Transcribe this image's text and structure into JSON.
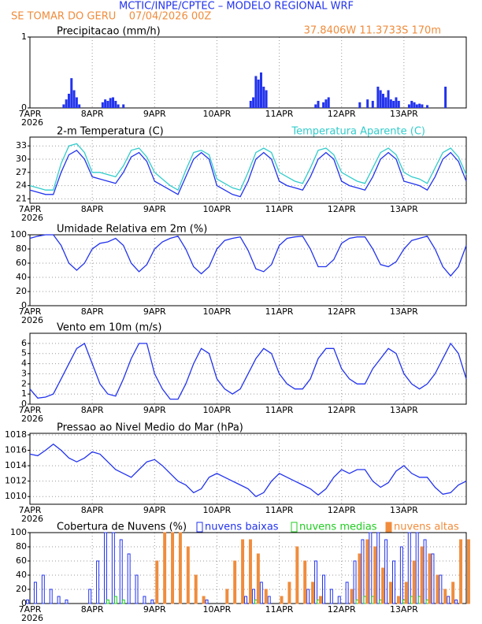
{
  "header": {
    "title": "MCTIC/INPE/CPTEC – MODELO REGIONAL WRF",
    "location": "SE TOMAR DO GERU    07/04/2026 00Z",
    "coords": "37.8406W 11.3733S 170m"
  },
  "chart_data": [
    {
      "type": "bar",
      "title": "Precipitacao (mm/h)",
      "year": "2026",
      "color": "#2233ee",
      "grid": true,
      "xlim": [
        0,
        168
      ],
      "ylim": [
        0,
        1
      ],
      "yticks": [
        0,
        1
      ],
      "xticks": [
        {
          "value": 0,
          "label": "7APR"
        },
        {
          "value": 24,
          "label": "8APR"
        },
        {
          "value": 48,
          "label": "9APR"
        },
        {
          "value": 72,
          "label": "10APR"
        },
        {
          "value": 96,
          "label": "11APR"
        },
        {
          "value": 120,
          "label": "12APR"
        },
        {
          "value": 144,
          "label": "13APR"
        }
      ],
      "x": [
        13,
        14,
        15,
        16,
        17,
        18,
        19,
        28,
        29,
        30,
        31,
        32,
        33,
        34,
        36,
        85,
        86,
        87,
        88,
        89,
        90,
        91,
        110,
        111,
        113,
        114,
        115,
        127,
        130,
        132,
        134,
        135,
        136,
        137,
        138,
        139,
        140,
        141,
        142,
        146,
        147,
        148,
        149,
        150,
        151,
        153,
        160
      ],
      "values": [
        0.05,
        0.12,
        0.2,
        0.42,
        0.25,
        0.15,
        0.05,
        0.08,
        0.12,
        0.1,
        0.14,
        0.15,
        0.1,
        0.05,
        0.05,
        0.1,
        0.15,
        0.45,
        0.4,
        0.5,
        0.3,
        0.25,
        0.05,
        0.1,
        0.08,
        0.12,
        0.15,
        0.08,
        0.12,
        0.1,
        0.3,
        0.25,
        0.2,
        0.15,
        0.25,
        0.12,
        0.1,
        0.15,
        0.1,
        0.05,
        0.1,
        0.08,
        0.05,
        0.06,
        0.05,
        0.04,
        0.3
      ]
    },
    {
      "type": "line",
      "title": "2-m Temperatura (C)",
      "year": "2026",
      "grid": true,
      "xlim": [
        0,
        168
      ],
      "ylim": [
        20,
        35
      ],
      "yticks": [
        21,
        24,
        27,
        30,
        33
      ],
      "xticks": [
        {
          "value": 0,
          "label": "7APR"
        },
        {
          "value": 24,
          "label": "8APR"
        },
        {
          "value": 48,
          "label": "9APR"
        },
        {
          "value": 72,
          "label": "10APR"
        },
        {
          "value": 96,
          "label": "11APR"
        },
        {
          "value": 120,
          "label": "12APR"
        },
        {
          "value": 144,
          "label": "13APR"
        }
      ],
      "x": [
        0,
        3,
        6,
        9,
        12,
        15,
        18,
        21,
        24,
        27,
        30,
        33,
        36,
        39,
        42,
        45,
        48,
        51,
        54,
        57,
        60,
        63,
        66,
        69,
        72,
        75,
        78,
        81,
        84,
        87,
        90,
        93,
        96,
        99,
        102,
        105,
        108,
        111,
        114,
        117,
        120,
        123,
        126,
        129,
        132,
        135,
        138,
        141,
        144,
        147,
        150,
        153,
        156,
        159,
        162,
        165,
        168
      ],
      "series": [
        {
          "color": "#2233ee",
          "values": [
            23,
            22.5,
            22,
            22,
            27,
            31,
            32,
            30,
            26,
            25.5,
            25,
            24.5,
            27,
            30.5,
            31.5,
            29.5,
            25,
            24,
            23,
            22,
            26,
            30,
            31.5,
            30,
            24,
            23,
            22,
            21.5,
            25,
            30,
            31.5,
            30,
            25,
            24,
            23.5,
            23,
            26,
            30,
            31.5,
            30,
            25,
            24,
            23.5,
            23,
            26,
            30,
            31.5,
            30,
            25,
            24.5,
            24,
            23,
            26,
            30,
            31.5,
            29.5,
            25
          ]
        },
        {
          "name": "Temperatura Aparente (C)",
          "color": "#33cccc",
          "values": [
            24,
            23.5,
            23,
            23,
            29,
            33,
            33.5,
            31.5,
            27,
            27,
            26.5,
            26,
            28.5,
            32,
            32.5,
            30.5,
            27,
            25.5,
            24,
            23,
            27.5,
            31.5,
            32,
            31,
            25.5,
            24.5,
            23.5,
            23,
            27,
            31.5,
            32.5,
            31.5,
            27,
            26,
            25,
            24.5,
            28,
            32,
            32.5,
            31,
            27,
            26,
            25,
            24.5,
            28,
            31.5,
            32.5,
            31,
            27,
            26,
            25.5,
            24.5,
            28,
            31.5,
            32.5,
            30.5,
            26.5
          ]
        }
      ]
    },
    {
      "type": "line",
      "title": "Umidade Relativa em 2m (%)",
      "year": "2026",
      "grid": true,
      "xlim": [
        0,
        168
      ],
      "ylim": [
        0,
        100
      ],
      "yticks": [
        0,
        20,
        40,
        60,
        80,
        100
      ],
      "xticks": [
        {
          "value": 0,
          "label": "7APR"
        },
        {
          "value": 24,
          "label": "8APR"
        },
        {
          "value": 48,
          "label": "9APR"
        },
        {
          "value": 72,
          "label": "10APR"
        },
        {
          "value": 96,
          "label": "11APR"
        },
        {
          "value": 120,
          "label": "12APR"
        },
        {
          "value": 144,
          "label": "13APR"
        }
      ],
      "x": [
        0,
        3,
        6,
        9,
        12,
        15,
        18,
        21,
        24,
        27,
        30,
        33,
        36,
        39,
        42,
        45,
        48,
        51,
        54,
        57,
        60,
        63,
        66,
        69,
        72,
        75,
        78,
        81,
        84,
        87,
        90,
        93,
        96,
        99,
        102,
        105,
        108,
        111,
        114,
        117,
        120,
        123,
        126,
        129,
        132,
        135,
        138,
        141,
        144,
        147,
        150,
        153,
        156,
        159,
        162,
        165,
        168
      ],
      "series": [
        {
          "color": "#2233ee",
          "values": [
            95,
            98,
            100,
            100,
            85,
            60,
            50,
            60,
            80,
            88,
            90,
            95,
            85,
            60,
            48,
            58,
            80,
            90,
            95,
            98,
            80,
            55,
            45,
            55,
            80,
            92,
            95,
            97,
            78,
            52,
            48,
            58,
            85,
            95,
            97,
            98,
            80,
            55,
            55,
            65,
            88,
            95,
            97,
            97,
            80,
            58,
            55,
            62,
            80,
            92,
            95,
            98,
            80,
            55,
            42,
            55,
            85
          ]
        }
      ]
    },
    {
      "type": "line",
      "title": "Vento em 10m (m/s)",
      "year": "2026",
      "grid": true,
      "xlim": [
        0,
        168
      ],
      "ylim": [
        0,
        7
      ],
      "yticks": [
        0,
        1,
        2,
        3,
        4,
        5,
        6
      ],
      "xticks": [
        {
          "value": 0,
          "label": "7APR"
        },
        {
          "value": 24,
          "label": "8APR"
        },
        {
          "value": 48,
          "label": "9APR"
        },
        {
          "value": 72,
          "label": "10APR"
        },
        {
          "value": 96,
          "label": "11APR"
        },
        {
          "value": 120,
          "label": "12APR"
        },
        {
          "value": 144,
          "label": "13APR"
        }
      ],
      "x": [
        0,
        3,
        6,
        9,
        12,
        15,
        18,
        21,
        24,
        27,
        30,
        33,
        36,
        39,
        42,
        45,
        48,
        51,
        54,
        57,
        60,
        63,
        66,
        69,
        72,
        75,
        78,
        81,
        84,
        87,
        90,
        93,
        96,
        99,
        102,
        105,
        108,
        111,
        114,
        117,
        120,
        123,
        126,
        129,
        132,
        135,
        138,
        141,
        144,
        147,
        150,
        153,
        156,
        159,
        162,
        165,
        168
      ],
      "series": [
        {
          "color": "#2233ee",
          "values": [
            1.5,
            0.6,
            0.7,
            1,
            2.5,
            4,
            5.5,
            6,
            4,
            2,
            1,
            0.8,
            2.5,
            4.5,
            6,
            6,
            3,
            1.5,
            0.5,
            0.5,
            2,
            4,
            5.5,
            5,
            2.5,
            1.5,
            1,
            1.5,
            3,
            4.5,
            5.5,
            5,
            3,
            2,
            1.5,
            1.5,
            2.5,
            4.5,
            5.5,
            5.5,
            3.5,
            2.5,
            2,
            2,
            3.5,
            4.5,
            5.5,
            5,
            3,
            2,
            1.5,
            2,
            3,
            4.5,
            6,
            5,
            2.5
          ]
        }
      ]
    },
    {
      "type": "line",
      "title": "Pressao ao Nivel Medio do Mar (hPa)",
      "year": "2026",
      "grid": true,
      "xlim": [
        0,
        168
      ],
      "ylim": [
        1009,
        1018.2
      ],
      "yticks": [
        1010,
        1012,
        1014,
        1016,
        1018
      ],
      "xticks": [
        {
          "value": 0,
          "label": "7APR"
        },
        {
          "value": 24,
          "label": "8APR"
        },
        {
          "value": 48,
          "label": "9APR"
        },
        {
          "value": 72,
          "label": "10APR"
        },
        {
          "value": 96,
          "label": "11APR"
        },
        {
          "value": 120,
          "label": "12APR"
        },
        {
          "value": 144,
          "label": "13APR"
        }
      ],
      "x": [
        0,
        3,
        6,
        9,
        12,
        15,
        18,
        21,
        24,
        27,
        30,
        33,
        36,
        39,
        42,
        45,
        48,
        51,
        54,
        57,
        60,
        63,
        66,
        69,
        72,
        75,
        78,
        81,
        84,
        87,
        90,
        93,
        96,
        99,
        102,
        105,
        108,
        111,
        114,
        117,
        120,
        123,
        126,
        129,
        132,
        135,
        138,
        141,
        144,
        147,
        150,
        153,
        156,
        159,
        162,
        165,
        168
      ],
      "series": [
        {
          "color": "#2233ee",
          "values": [
            1015.5,
            1015.3,
            1016,
            1016.8,
            1016,
            1015,
            1014.5,
            1015,
            1015.8,
            1015.5,
            1014.5,
            1013.5,
            1013,
            1012.5,
            1013.5,
            1014.5,
            1014.8,
            1014,
            1013,
            1012,
            1011.5,
            1010.5,
            1011,
            1012.5,
            1013,
            1012.5,
            1012,
            1011.5,
            1011,
            1010,
            1010.5,
            1012,
            1013,
            1012.5,
            1012,
            1011.5,
            1011,
            1010.2,
            1011,
            1012.5,
            1013.5,
            1013,
            1013.5,
            1013.5,
            1012,
            1011.2,
            1011.8,
            1013.3,
            1014,
            1013,
            1012.5,
            1012.5,
            1011.2,
            1010.3,
            1010.5,
            1011.5,
            1012
          ]
        }
      ]
    },
    {
      "type": "bar",
      "title": "Cobertura de Nuvens (%)",
      "year": "2026",
      "grid": true,
      "xlim": [
        0,
        168
      ],
      "ylim": [
        0,
        100
      ],
      "yticks": [
        0,
        20,
        40,
        60,
        80,
        100
      ],
      "xticks": [
        {
          "value": 0,
          "label": "7APR"
        },
        {
          "value": 24,
          "label": "8APR"
        },
        {
          "value": 48,
          "label": "9APR"
        },
        {
          "value": 72,
          "label": "10APR"
        },
        {
          "value": 96,
          "label": "11APR"
        },
        {
          "value": 120,
          "label": "12APR"
        },
        {
          "value": 144,
          "label": "13APR"
        }
      ],
      "x": [
        0,
        3,
        6,
        9,
        12,
        15,
        18,
        21,
        24,
        27,
        30,
        33,
        36,
        39,
        42,
        45,
        48,
        51,
        54,
        57,
        60,
        63,
        66,
        69,
        72,
        75,
        78,
        81,
        84,
        87,
        90,
        93,
        96,
        99,
        102,
        105,
        108,
        111,
        114,
        117,
        120,
        123,
        126,
        129,
        132,
        135,
        138,
        141,
        144,
        147,
        150,
        153,
        156,
        159,
        162,
        165,
        168
      ],
      "series": [
        {
          "name": "nuvens baixas",
          "color": "#2233ee",
          "filled": false,
          "values": [
            5,
            30,
            40,
            20,
            10,
            5,
            0,
            0,
            20,
            60,
            100,
            100,
            90,
            70,
            40,
            10,
            5,
            0,
            0,
            0,
            0,
            0,
            0,
            5,
            0,
            0,
            0,
            0,
            10,
            20,
            30,
            10,
            0,
            0,
            0,
            0,
            20,
            60,
            40,
            20,
            10,
            30,
            60,
            90,
            100,
            100,
            90,
            60,
            80,
            100,
            100,
            90,
            70,
            40,
            10,
            5,
            0
          ]
        },
        {
          "name": "nuvens medias",
          "color": "#22cc22",
          "filled": false,
          "values": [
            0,
            0,
            0,
            0,
            0,
            0,
            0,
            0,
            0,
            0,
            5,
            10,
            5,
            0,
            0,
            0,
            0,
            0,
            0,
            0,
            0,
            0,
            0,
            0,
            0,
            0,
            0,
            0,
            0,
            5,
            0,
            0,
            0,
            0,
            0,
            0,
            0,
            5,
            0,
            0,
            0,
            0,
            5,
            10,
            10,
            5,
            0,
            0,
            5,
            10,
            10,
            5,
            0,
            0,
            0,
            0,
            0
          ]
        },
        {
          "name": "nuvens altas",
          "color": "#f08c3c",
          "filled": true,
          "values": [
            0,
            0,
            0,
            0,
            0,
            0,
            0,
            0,
            0,
            0,
            0,
            0,
            0,
            0,
            0,
            0,
            60,
            100,
            100,
            100,
            80,
            40,
            10,
            0,
            0,
            20,
            60,
            90,
            90,
            70,
            20,
            0,
            10,
            30,
            80,
            60,
            30,
            10,
            0,
            0,
            0,
            20,
            70,
            90,
            80,
            50,
            30,
            10,
            30,
            60,
            80,
            70,
            40,
            20,
            30,
            90,
            90
          ]
        }
      ]
    }
  ]
}
